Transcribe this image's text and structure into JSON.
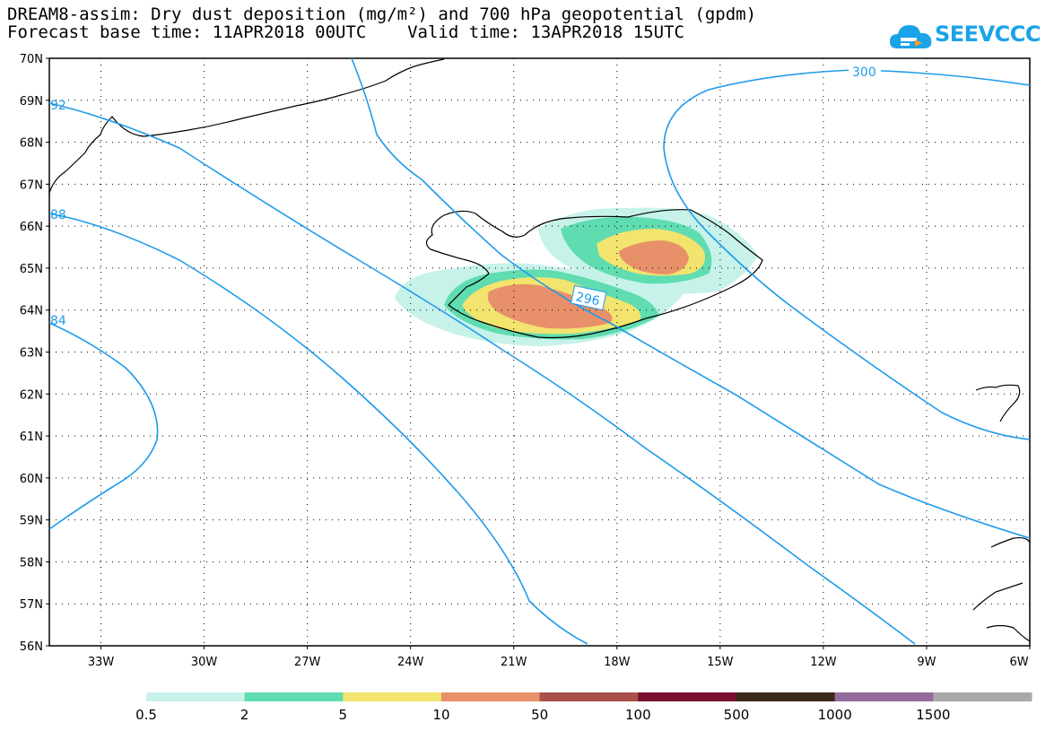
{
  "title": {
    "line1": "DREAM8-assim: Dry dust deposition (mg/m²) and 700 hPa geopotential (gpdm)",
    "line2": "Forecast base time: 11APR2018 00UTC    Valid time: 13APR2018 15UTC"
  },
  "logo": {
    "text": "SEEVCCC",
    "icon": "cloud-icon",
    "color": "#1aa3e8"
  },
  "map": {
    "lat_labels": [
      "70N",
      "69N",
      "68N",
      "67N",
      "66N",
      "65N",
      "64N",
      "63N",
      "62N",
      "61N",
      "60N",
      "59N",
      "58N",
      "57N",
      "56N"
    ],
    "lon_labels": [
      "33W",
      "30W",
      "27W",
      "24W",
      "21W",
      "18W",
      "15W",
      "12W",
      "9W",
      "6W"
    ],
    "lat_range": [
      56,
      70
    ],
    "lon_range": [
      -34.5,
      -6
    ],
    "gridlines": "dotted",
    "contour_color": "#1f9bea",
    "contour_labels": [
      "92",
      "88",
      "84",
      "296",
      "300"
    ]
  },
  "legend": {
    "labels": [
      "0.5",
      "2",
      "5",
      "10",
      "50",
      "100",
      "500",
      "1000",
      "1500"
    ],
    "colors": [
      "#c6f2ea",
      "#5fdcb0",
      "#f2e46e",
      "#e8906a",
      "#a8504a",
      "#7a1030",
      "#3a2a1a",
      "#946b9b",
      "#a9a9a9"
    ]
  }
}
